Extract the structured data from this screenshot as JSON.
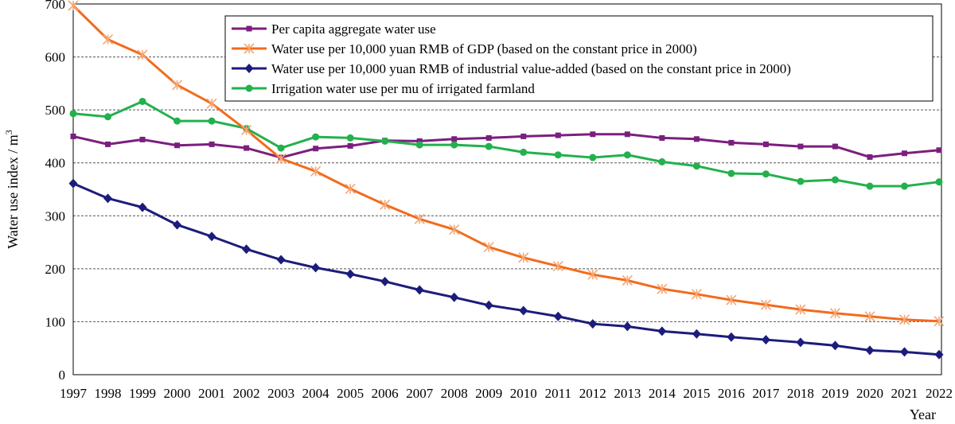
{
  "chart_data": {
    "type": "line",
    "title": "",
    "xlabel": "Year",
    "ylabel": "Water use index / m",
    "ylabel_sup": "3",
    "ylim": [
      0,
      700
    ],
    "yticks": [
      0,
      100,
      200,
      300,
      400,
      500,
      600,
      700
    ],
    "grid": "horizontal-dashed",
    "legend_position": "top-right",
    "x": [
      "1997",
      "1998",
      "1999",
      "2000",
      "2001",
      "2002",
      "2003",
      "2004",
      "2005",
      "2006",
      "2007",
      "2008",
      "2009",
      "2010",
      "2011",
      "2012",
      "2013",
      "2014",
      "2015",
      "2016",
      "2017",
      "2018",
      "2019",
      "2020",
      "2021",
      "2022"
    ],
    "series": [
      {
        "name": "Per capita aggregate water use",
        "color": "#7b1f7f",
        "marker": "square",
        "values": [
          450,
          435,
          444,
          433,
          435,
          428,
          410,
          427,
          432,
          442,
          441,
          445,
          447,
          450,
          452,
          454,
          454,
          447,
          445,
          438,
          435,
          431,
          431,
          411,
          418,
          424
        ]
      },
      {
        "name": "Water use per 10,000 yuan RMB of GDP (based on the constant price in 2000)",
        "color": "#f26b1d",
        "marker": "asterisk",
        "marker_color": "#f4a774",
        "values": [
          697,
          633,
          604,
          547,
          512,
          462,
          408,
          384,
          351,
          321,
          294,
          274,
          241,
          221,
          205,
          189,
          178,
          162,
          152,
          141,
          132,
          123,
          116,
          110,
          104,
          101
        ]
      },
      {
        "name": "Water use per 10,000 yuan RMB of industrial value-added (based on the constant price in 2000)",
        "color": "#1c1c7c",
        "marker": "diamond",
        "values": [
          361,
          333,
          316,
          283,
          261,
          237,
          217,
          202,
          190,
          176,
          160,
          146,
          131,
          121,
          110,
          96,
          91,
          82,
          77,
          71,
          66,
          61,
          55,
          46,
          43,
          38
        ]
      },
      {
        "name": "Irrigation water use per mu of irrigated farmland",
        "color": "#23b14d",
        "marker": "circle",
        "values": [
          493,
          487,
          516,
          479,
          479,
          465,
          428,
          449,
          447,
          441,
          434,
          434,
          431,
          420,
          415,
          410,
          415,
          402,
          394,
          380,
          379,
          365,
          368,
          356,
          356,
          364
        ]
      }
    ]
  }
}
